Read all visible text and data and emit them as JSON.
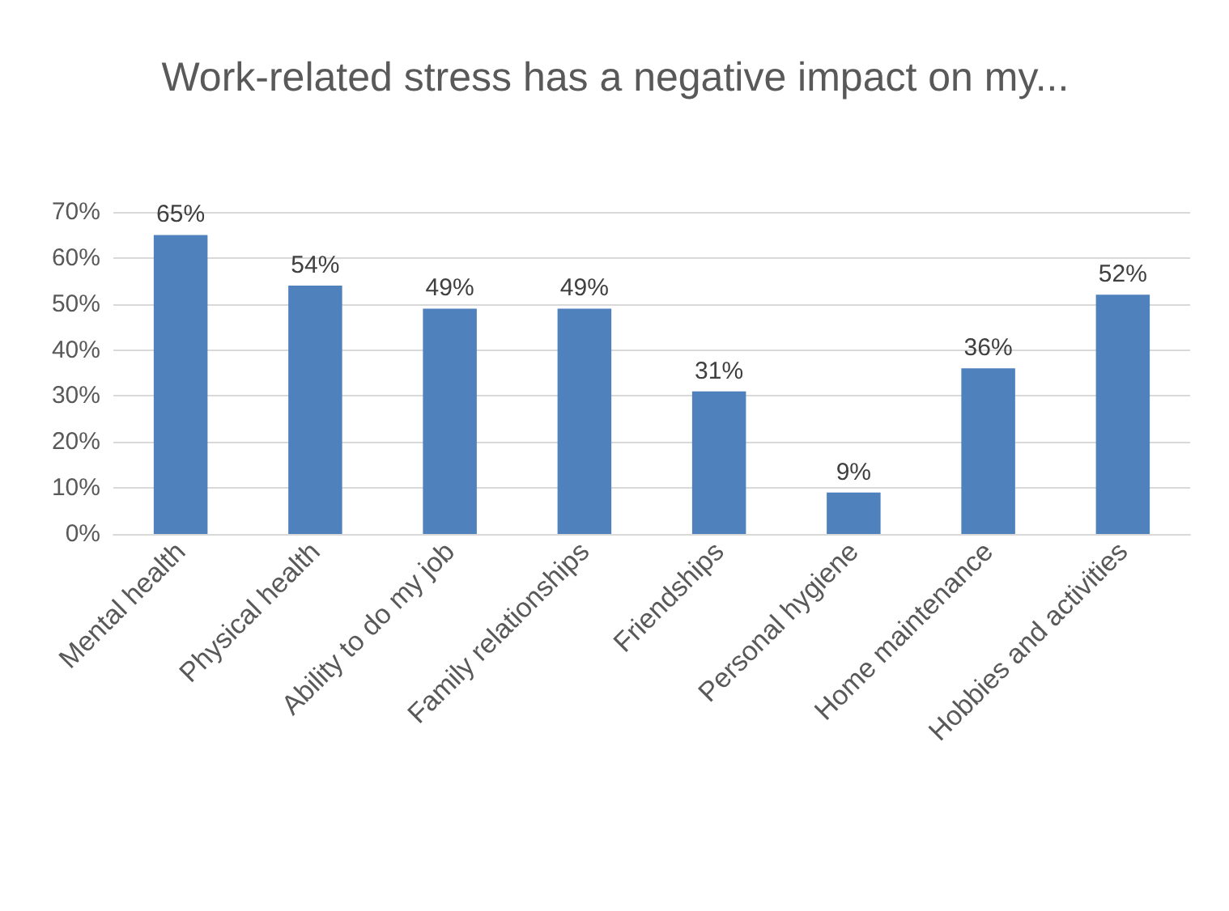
{
  "chart_data": {
    "type": "bar",
    "title": "Work-related stress has a negative impact on my...",
    "categories": [
      "Mental health",
      "Physical health",
      "Ability to do my job",
      "Family relationships",
      "Friendships",
      "Personal hygiene",
      "Home maintenance",
      "Hobbies and activities"
    ],
    "values": [
      65,
      54,
      49,
      49,
      31,
      9,
      36,
      52
    ],
    "value_labels": [
      "65%",
      "54%",
      "49%",
      "49%",
      "31%",
      "9%",
      "36%",
      "52%"
    ],
    "color": "#4f81bd",
    "ylim": [
      0,
      70
    ],
    "yticks": [
      {
        "value": 0,
        "label": "0%"
      },
      {
        "value": 10,
        "label": "10%"
      },
      {
        "value": 20,
        "label": "20%"
      },
      {
        "value": 30,
        "label": "30%"
      },
      {
        "value": 40,
        "label": "40%"
      },
      {
        "value": 50,
        "label": "50%"
      },
      {
        "value": 60,
        "label": "60%"
      },
      {
        "value": 70,
        "label": "70%"
      }
    ],
    "grid": "y"
  }
}
